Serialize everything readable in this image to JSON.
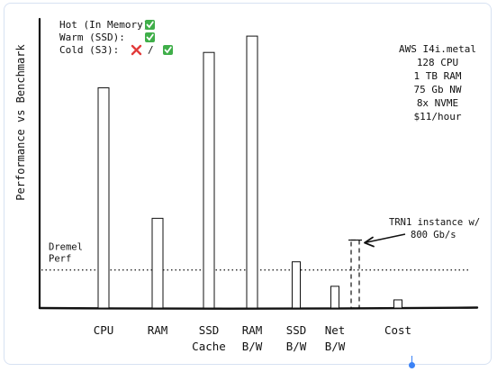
{
  "chart_data": {
    "type": "bar",
    "ylabel": "Performance vs Benchmark",
    "categories": [
      {
        "label": "CPU",
        "label2": ""
      },
      {
        "label": "RAM",
        "label2": ""
      },
      {
        "label": "SSD",
        "label2": "Cache"
      },
      {
        "label": "RAM",
        "label2": "B/W"
      },
      {
        "label": "SSD",
        "label2": "B/W"
      },
      {
        "label": "Net",
        "label2": "B/W"
      },
      {
        "label": "Cost",
        "label2": ""
      }
    ],
    "values": [
      0.81,
      0.33,
      0.94,
      1.0,
      0.17,
      0.08,
      0.03
    ],
    "ylim": [
      0,
      1.05
    ],
    "reference_line": {
      "label_line1": "Dremel",
      "label_line2": "Perf",
      "value": 0.14
    },
    "extra_bar": {
      "category_index": 5,
      "value": 0.25,
      "annotation_line1": "TRN1 instance w/",
      "annotation_line2": "800 Gb/s"
    },
    "legend": [
      {
        "label": "Hot (In Memory):",
        "marks": [
          "check"
        ]
      },
      {
        "label": "Warm (SSD):",
        "marks": [
          "check"
        ]
      },
      {
        "label": "Cold (S3):",
        "marks": [
          "cross",
          "check"
        ],
        "separator": "/"
      }
    ],
    "spec_box": [
      "AWS I4i.metal",
      "128 CPU",
      "1 TB RAM",
      "75 Gb NW",
      "8x NVME",
      "$11/hour"
    ],
    "colors": {
      "check": "#3fae49",
      "cross": "#e23b3b",
      "ink": "#111111",
      "accent": "#3b82f6"
    }
  }
}
